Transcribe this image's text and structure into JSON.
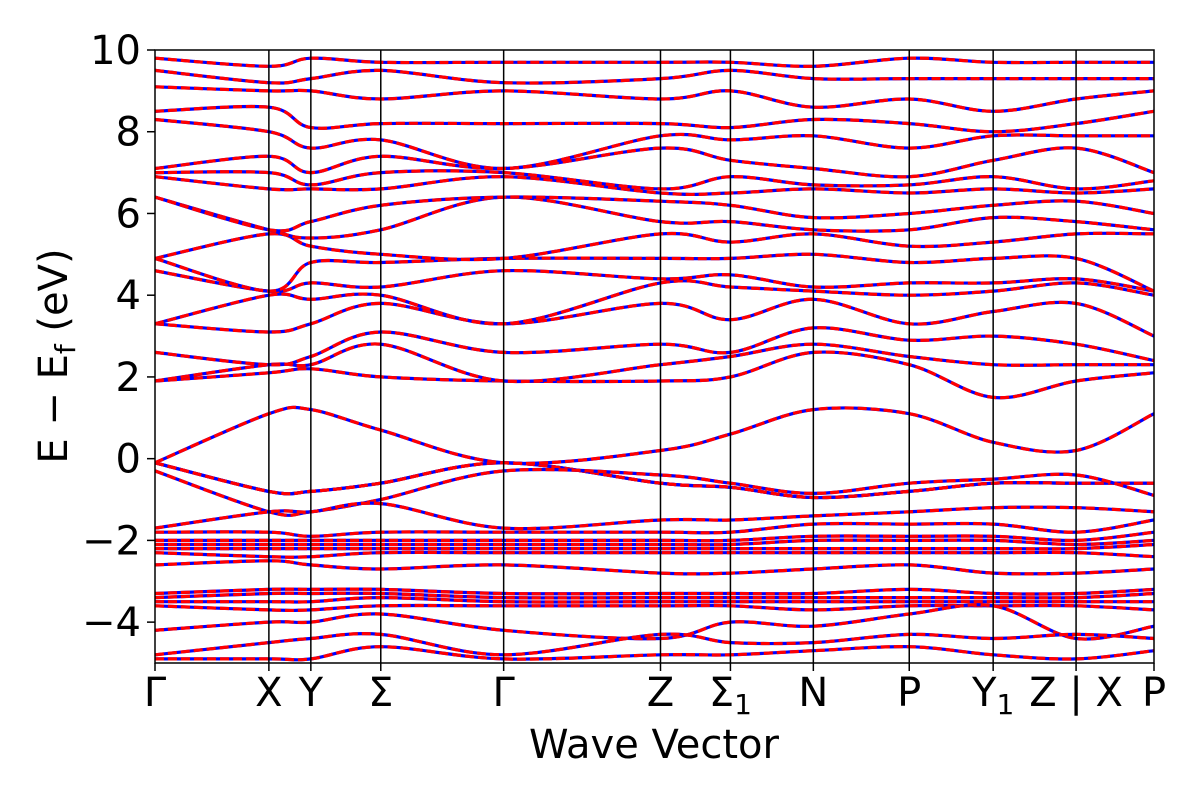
{
  "chart_data": {
    "type": "line",
    "xlabel": "Wave Vector",
    "ylabel": {
      "main": "E − E",
      "sub": "f",
      "unit": " (eV)"
    },
    "ylim": [
      -5,
      10
    ],
    "yticks": [
      {
        "value": -4,
        "label": "−4"
      },
      {
        "value": -2,
        "label": "−2"
      },
      {
        "value": 0,
        "label": "0"
      },
      {
        "value": 2,
        "label": "2"
      },
      {
        "value": 4,
        "label": "4"
      },
      {
        "value": 6,
        "label": "6"
      },
      {
        "value": 8,
        "label": "8"
      },
      {
        "value": 10,
        "label": "10"
      }
    ],
    "xlim": [
      0,
      1
    ],
    "kpoints": [
      {
        "x": 0.0,
        "label": "Γ"
      },
      {
        "x": 0.114,
        "label": "X"
      },
      {
        "x": 0.156,
        "label": "Y"
      },
      {
        "x": 0.226,
        "label": "Σ"
      },
      {
        "x": 0.349,
        "label": "Γ"
      },
      {
        "x": 0.506,
        "label": "Z"
      },
      {
        "x": 0.576,
        "label": "Σ",
        "sub": "1"
      },
      {
        "x": 0.659,
        "label": "N"
      },
      {
        "x": 0.755,
        "label": "P"
      },
      {
        "x": 0.839,
        "label": "Y",
        "sub": "1"
      },
      {
        "x": 0.922,
        "label": "Z | X"
      },
      {
        "x": 1.0,
        "label": "P"
      }
    ],
    "grid": false,
    "series": [
      {
        "color": "#ff0000",
        "style": "solid",
        "bands": [
          [
            -0.1,
            -0.8,
            -0.8,
            -0.6,
            -0.1,
            -0.6,
            -0.7,
            -0.95,
            -0.8,
            -0.6,
            -0.6,
            -0.6
          ],
          [
            -0.1,
            -0.8,
            -0.8,
            -0.6,
            -0.1,
            -0.6,
            -0.7,
            -0.95,
            -0.8,
            -0.6,
            -0.6,
            -0.6
          ],
          [
            -0.1,
            1.1,
            1.2,
            0.7,
            -0.1,
            0.2,
            0.6,
            1.2,
            1.1,
            0.4,
            0.2,
            1.1
          ],
          [
            -0.3,
            -1.3,
            -1.3,
            -1.0,
            -0.3,
            -0.4,
            -0.6,
            -0.85,
            -0.6,
            -0.5,
            -0.4,
            -0.9
          ],
          [
            -1.7,
            -1.3,
            -1.3,
            -1.1,
            -1.7,
            -1.5,
            -1.5,
            -1.4,
            -1.3,
            -1.2,
            -1.2,
            -1.3
          ],
          [
            -1.8,
            -1.8,
            -1.9,
            -1.8,
            -1.8,
            -1.8,
            -1.8,
            -1.6,
            -1.6,
            -1.6,
            -1.8,
            -1.5
          ],
          [
            -2.0,
            -2.0,
            -2.0,
            -2.0,
            -2.0,
            -2.0,
            -2.0,
            -1.9,
            -1.9,
            -1.9,
            -2.0,
            -1.8
          ],
          [
            -2.1,
            -2.1,
            -2.1,
            -2.1,
            -2.1,
            -2.1,
            -2.1,
            -2.0,
            -2.0,
            -2.0,
            -2.1,
            -2.0
          ],
          [
            -2.2,
            -2.2,
            -2.2,
            -2.2,
            -2.2,
            -2.2,
            -2.2,
            -2.2,
            -2.2,
            -2.2,
            -2.2,
            -2.1
          ],
          [
            -2.3,
            -2.4,
            -2.4,
            -2.3,
            -2.3,
            -2.3,
            -2.3,
            -2.3,
            -2.3,
            -2.3,
            -2.3,
            -2.4
          ],
          [
            -2.6,
            -2.5,
            -2.6,
            -2.7,
            -2.6,
            -2.8,
            -2.8,
            -2.7,
            -2.6,
            -2.8,
            -2.8,
            -2.7
          ],
          [
            -3.3,
            -3.2,
            -3.2,
            -3.2,
            -3.3,
            -3.3,
            -3.3,
            -3.3,
            -3.2,
            -3.3,
            -3.3,
            -3.2
          ],
          [
            -3.4,
            -3.3,
            -3.3,
            -3.3,
            -3.4,
            -3.4,
            -3.4,
            -3.4,
            -3.4,
            -3.4,
            -3.4,
            -3.3
          ],
          [
            -3.5,
            -3.5,
            -3.5,
            -3.4,
            -3.5,
            -3.5,
            -3.5,
            -3.5,
            -3.5,
            -3.5,
            -3.5,
            -3.5
          ],
          [
            -3.6,
            -3.7,
            -3.7,
            -3.6,
            -3.6,
            -3.6,
            -3.6,
            -3.7,
            -3.6,
            -3.6,
            -3.6,
            -3.7
          ],
          [
            -4.2,
            -4.0,
            -4.0,
            -3.8,
            -4.2,
            -4.4,
            -4.0,
            -4.1,
            -3.8,
            -3.6,
            -4.4,
            -4.1
          ],
          [
            -4.8,
            -4.5,
            -4.4,
            -4.3,
            -4.8,
            -4.3,
            -4.5,
            -4.5,
            -4.3,
            -4.4,
            -4.3,
            -4.4
          ],
          [
            -4.9,
            -4.9,
            -4.9,
            -4.6,
            -4.9,
            -4.8,
            -4.8,
            -4.7,
            -4.6,
            -4.8,
            -4.9,
            -4.7
          ],
          [
            1.9,
            2.1,
            2.2,
            2.0,
            1.9,
            1.9,
            2.0,
            2.6,
            2.3,
            1.5,
            1.9,
            2.1
          ],
          [
            1.9,
            2.3,
            2.3,
            2.8,
            1.9,
            2.3,
            2.5,
            2.8,
            2.5,
            2.3,
            2.3,
            2.3
          ],
          [
            2.6,
            2.3,
            2.5,
            3.1,
            2.6,
            2.8,
            2.6,
            3.2,
            2.9,
            3.0,
            2.8,
            2.4
          ],
          [
            3.3,
            3.1,
            3.3,
            3.8,
            3.3,
            3.8,
            3.4,
            3.9,
            3.3,
            3.6,
            3.8,
            3.0
          ],
          [
            3.3,
            4.0,
            3.9,
            4.0,
            3.3,
            4.3,
            4.2,
            4.1,
            4.0,
            4.1,
            4.3,
            4.0
          ],
          [
            4.6,
            4.1,
            4.3,
            4.2,
            4.6,
            4.4,
            4.5,
            4.2,
            4.3,
            4.3,
            4.4,
            4.1
          ],
          [
            4.9,
            4.1,
            4.8,
            4.8,
            4.9,
            4.9,
            4.9,
            5.0,
            4.8,
            4.9,
            4.9,
            4.1
          ],
          [
            4.9,
            5.5,
            5.2,
            5.0,
            4.9,
            5.5,
            5.3,
            5.5,
            5.2,
            5.3,
            5.5,
            5.5
          ],
          [
            6.4,
            5.6,
            5.4,
            5.6,
            6.4,
            5.8,
            5.8,
            5.6,
            5.6,
            5.9,
            5.8,
            5.6
          ],
          [
            6.4,
            5.6,
            5.8,
            6.2,
            6.4,
            6.3,
            6.2,
            5.9,
            6.0,
            6.2,
            6.3,
            6.0
          ],
          [
            6.9,
            6.6,
            6.6,
            6.6,
            6.9,
            6.5,
            6.5,
            6.6,
            6.5,
            6.6,
            6.5,
            6.6
          ],
          [
            7.0,
            7.0,
            6.7,
            7.0,
            7.0,
            6.6,
            6.9,
            6.7,
            6.7,
            6.9,
            6.6,
            6.8
          ],
          [
            7.1,
            7.4,
            7.0,
            7.4,
            7.1,
            7.6,
            7.3,
            7.1,
            6.9,
            7.3,
            7.6,
            7.0
          ],
          [
            8.3,
            8.0,
            7.6,
            7.8,
            7.1,
            7.9,
            7.8,
            7.9,
            7.6,
            7.9,
            7.9,
            7.9
          ],
          [
            8.5,
            8.6,
            8.1,
            8.2,
            8.2,
            8.2,
            8.1,
            8.3,
            8.2,
            8.0,
            8.2,
            8.5
          ],
          [
            9.1,
            9.0,
            9.0,
            8.8,
            9.0,
            8.8,
            9.0,
            8.6,
            8.8,
            8.5,
            8.8,
            9.0
          ],
          [
            9.5,
            9.2,
            9.3,
            9.5,
            9.2,
            9.3,
            9.5,
            9.3,
            9.3,
            9.3,
            9.3,
            9.3
          ],
          [
            9.8,
            9.6,
            9.8,
            9.7,
            9.7,
            9.7,
            9.7,
            9.6,
            9.8,
            9.7,
            9.7,
            9.7
          ]
        ]
      }
    ]
  }
}
